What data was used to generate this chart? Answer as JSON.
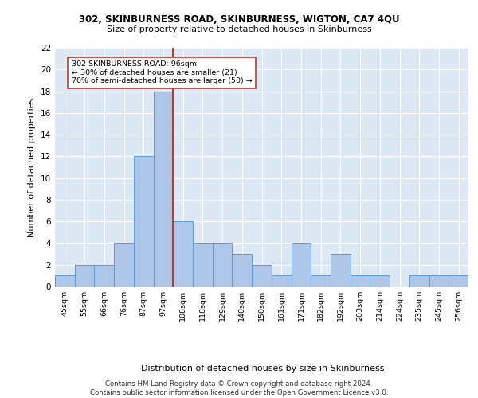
{
  "title1": "302, SKINBURNESS ROAD, SKINBURNESS, WIGTON, CA7 4QU",
  "title2": "Size of property relative to detached houses in Skinburness",
  "xlabel": "Distribution of detached houses by size in Skinburness",
  "ylabel": "Number of detached properties",
  "categories": [
    "45sqm",
    "55sqm",
    "66sqm",
    "76sqm",
    "87sqm",
    "97sqm",
    "108sqm",
    "118sqm",
    "129sqm",
    "140sqm",
    "150sqm",
    "161sqm",
    "171sqm",
    "182sqm",
    "192sqm",
    "203sqm",
    "214sqm",
    "224sqm",
    "235sqm",
    "245sqm",
    "256sqm"
  ],
  "values": [
    1,
    2,
    2,
    4,
    12,
    18,
    6,
    4,
    4,
    3,
    2,
    1,
    4,
    1,
    3,
    1,
    1,
    0,
    1,
    1,
    1
  ],
  "bar_color": "#aec6e8",
  "bar_edge_color": "#5b9bd5",
  "reference_line_index": 5,
  "reference_line_color": "#c0392b",
  "annotation_text": "302 SKINBURNESS ROAD: 96sqm\n← 30% of detached houses are smaller (21)\n70% of semi-detached houses are larger (50) →",
  "annotation_box_color": "white",
  "annotation_box_edge": "#c0392b",
  "ylim": [
    0,
    22
  ],
  "yticks": [
    0,
    2,
    4,
    6,
    8,
    10,
    12,
    14,
    16,
    18,
    20,
    22
  ],
  "background_color": "#dde8f5",
  "grid_color": "white",
  "footer": "Contains HM Land Registry data © Crown copyright and database right 2024.\nContains public sector information licensed under the Open Government Licence v3.0."
}
